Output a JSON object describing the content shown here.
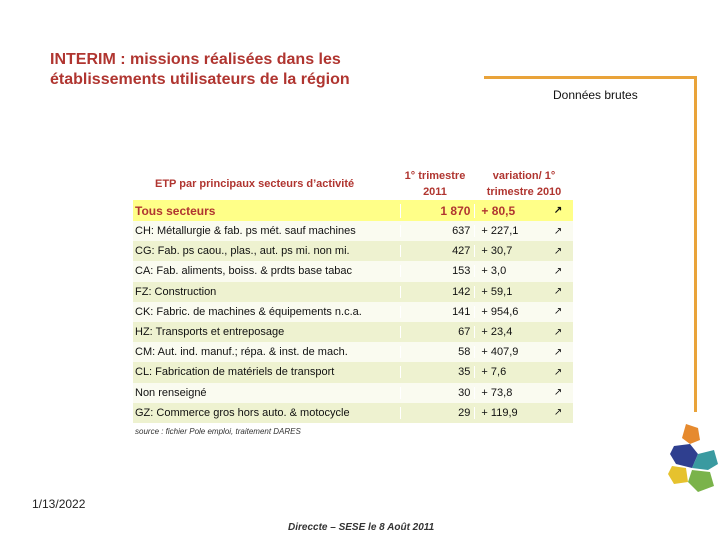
{
  "title": "INTERIM : missions réalisées dans les établissements utilisateurs de la région",
  "subtitle": "Données brutes",
  "date": "1/13/2022",
  "footer": "Direccte – SESE le 8 Août 2011",
  "table": {
    "header_sectors": "ETP par principaux secteurs d’activité",
    "header_quarter": "1° trimestre 2011",
    "header_variation": "variation/ 1° trimestre 2010",
    "arrow_symbol": "↗",
    "rows": [
      {
        "label": "Tous secteurs",
        "value": "1 870",
        "variation": "+ 80,5"
      },
      {
        "label": "CH: Métallurgie & fab. ps mét. sauf machines",
        "value": "637",
        "variation": "+ 227,1"
      },
      {
        "label": "CG: Fab. ps caou., plas., aut. ps mi. non mi.",
        "value": "427",
        "variation": "+ 30,7"
      },
      {
        "label": "CA: Fab. aliments, boiss. & prdts base tabac",
        "value": "153",
        "variation": "+ 3,0"
      },
      {
        "label": "FZ: Construction",
        "value": "142",
        "variation": "+ 59,1"
      },
      {
        "label": "CK: Fabric. de machines & équipements n.c.a.",
        "value": "141",
        "variation": "+ 954,6"
      },
      {
        "label": "HZ: Transports et entreposage",
        "value": "67",
        "variation": "+ 23,4"
      },
      {
        "label": "CM: Aut. ind. manuf.; répa. & inst. de mach.",
        "value": "58",
        "variation": "+ 407,9"
      },
      {
        "label": "CL: Fabrication de matériels de transport",
        "value": "35",
        "variation": "+ 7,6"
      },
      {
        "label": "Non renseigné",
        "value": "30",
        "variation": "+ 73,8"
      },
      {
        "label": "GZ: Commerce gros hors auto. & motocycle",
        "value": "29",
        "variation": "+ 119,9"
      }
    ],
    "source": "source : fichier Pole emploi, traitement DARES"
  },
  "colors": {
    "title": "#b03530",
    "accent_line": "#e9a33a",
    "total_row": "#ffff88"
  }
}
